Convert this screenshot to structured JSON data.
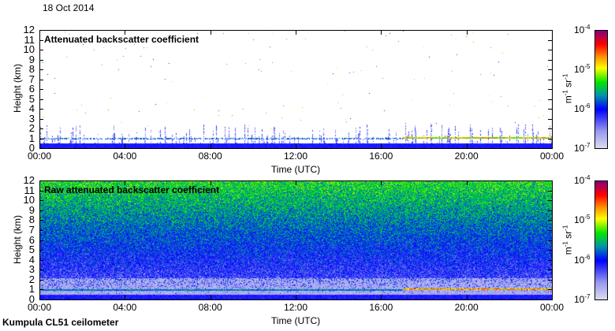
{
  "date_label": "18 Oct 2014",
  "footer_label": "Kumpula CL51 ceilometer",
  "chart_data": [
    {
      "type": "heatmap",
      "title": "Attenuated backscatter coefficient",
      "xlabel": "Time (UTC)",
      "ylabel": "Height (km)",
      "xlim": [
        0,
        24
      ],
      "ylim": [
        0,
        12
      ],
      "x_ticks": [
        "00:00",
        "04:00",
        "08:00",
        "12:00",
        "16:00",
        "20:00",
        "00:00"
      ],
      "y_ticks": [
        "0",
        "1",
        "2",
        "3",
        "4",
        "5",
        "6",
        "7",
        "8",
        "9",
        "10",
        "11",
        "12"
      ],
      "colorbar": {
        "label_base": "m",
        "label_exp1": "-1",
        "label_mid": " sr",
        "label_exp2": "-1",
        "scale": "log",
        "range": [
          1e-07,
          0.0001
        ],
        "ticks": [
          {
            "base": "10",
            "exp": "-7"
          },
          {
            "base": "10",
            "exp": "-6"
          },
          {
            "base": "10",
            "exp": "-5"
          },
          {
            "base": "10",
            "exp": "-4"
          }
        ]
      },
      "features": {
        "surface_layer_top_km": 0.5,
        "cloud_base_km_after_17h": 1.1,
        "cloud_base_km_before_17h": 1.0,
        "cloud_onset_hour": 17
      }
    },
    {
      "type": "heatmap",
      "title": "Raw attenuated backscatter coefficient",
      "xlabel": "Time (UTC)",
      "ylabel": "Height (km)",
      "xlim": [
        0,
        24
      ],
      "ylim": [
        0,
        12
      ],
      "x_ticks": [
        "00:00",
        "04:00",
        "08:00",
        "12:00",
        "16:00",
        "20:00",
        "00:00"
      ],
      "y_ticks": [
        "0",
        "1",
        "2",
        "3",
        "4",
        "5",
        "6",
        "7",
        "8",
        "9",
        "10",
        "11",
        "12"
      ],
      "colorbar": {
        "label_base": "m",
        "label_exp1": "-1",
        "label_mid": " sr",
        "label_exp2": "-1",
        "scale": "log",
        "range": [
          1e-07,
          0.0001
        ],
        "ticks": [
          {
            "base": "10",
            "exp": "-7"
          },
          {
            "base": "10",
            "exp": "-6"
          },
          {
            "base": "10",
            "exp": "-5"
          },
          {
            "base": "10",
            "exp": "-4"
          }
        ]
      },
      "features": {
        "surface_layer_top_km": 0.5,
        "cloud_base_km_after_17h": 1.1,
        "cloud_base_km_before_17h": 1.0,
        "cloud_onset_hour": 17
      }
    }
  ]
}
